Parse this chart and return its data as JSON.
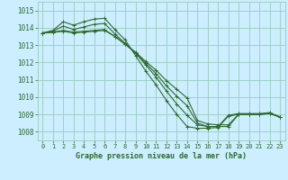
{
  "xlabel": "Graphe pression niveau de la mer (hPa)",
  "bg_color": "#cceeff",
  "grid_color": "#99ccbb",
  "line_color": "#2d6a2d",
  "xlim": [
    -0.5,
    23.5
  ],
  "ylim": [
    1007.5,
    1015.5
  ],
  "yticks": [
    1008,
    1009,
    1010,
    1011,
    1012,
    1013,
    1014,
    1015
  ],
  "xticks": [
    0,
    1,
    2,
    3,
    4,
    5,
    6,
    7,
    8,
    9,
    10,
    11,
    12,
    13,
    14,
    15,
    16,
    17,
    18,
    19,
    20,
    21,
    22,
    23
  ],
  "series": [
    [
      1013.7,
      1013.85,
      1014.35,
      1014.15,
      1014.35,
      1014.5,
      1014.55,
      1013.9,
      1013.3,
      1012.4,
      1011.5,
      1010.7,
      1009.8,
      1009.0,
      1008.3,
      1008.2,
      1008.2,
      1008.25,
      1008.9,
      1009.0,
      1009.0,
      1009.0,
      1009.1,
      1008.85
    ],
    [
      1013.7,
      1013.8,
      1014.1,
      1013.9,
      1014.05,
      1014.2,
      1014.25,
      1013.65,
      1013.1,
      1012.55,
      1011.85,
      1011.15,
      1010.35,
      1009.6,
      1008.95,
      1008.4,
      1008.3,
      1008.3,
      1008.95,
      1009.05,
      1009.05,
      1009.05,
      1009.1,
      1008.85
    ],
    [
      1013.7,
      1013.75,
      1013.85,
      1013.75,
      1013.8,
      1013.85,
      1013.9,
      1013.5,
      1013.05,
      1012.55,
      1011.95,
      1011.35,
      1010.65,
      1010.05,
      1009.5,
      1008.5,
      1008.3,
      1008.3,
      1008.3,
      1009.0,
      1009.0,
      1009.0,
      1009.05,
      1008.85
    ],
    [
      1013.7,
      1013.73,
      1013.8,
      1013.7,
      1013.75,
      1013.8,
      1013.85,
      1013.5,
      1013.05,
      1012.6,
      1012.05,
      1011.55,
      1010.95,
      1010.45,
      1009.95,
      1008.65,
      1008.45,
      1008.4,
      1008.4,
      1009.0,
      1009.0,
      1009.0,
      1009.05,
      1008.85
    ]
  ]
}
